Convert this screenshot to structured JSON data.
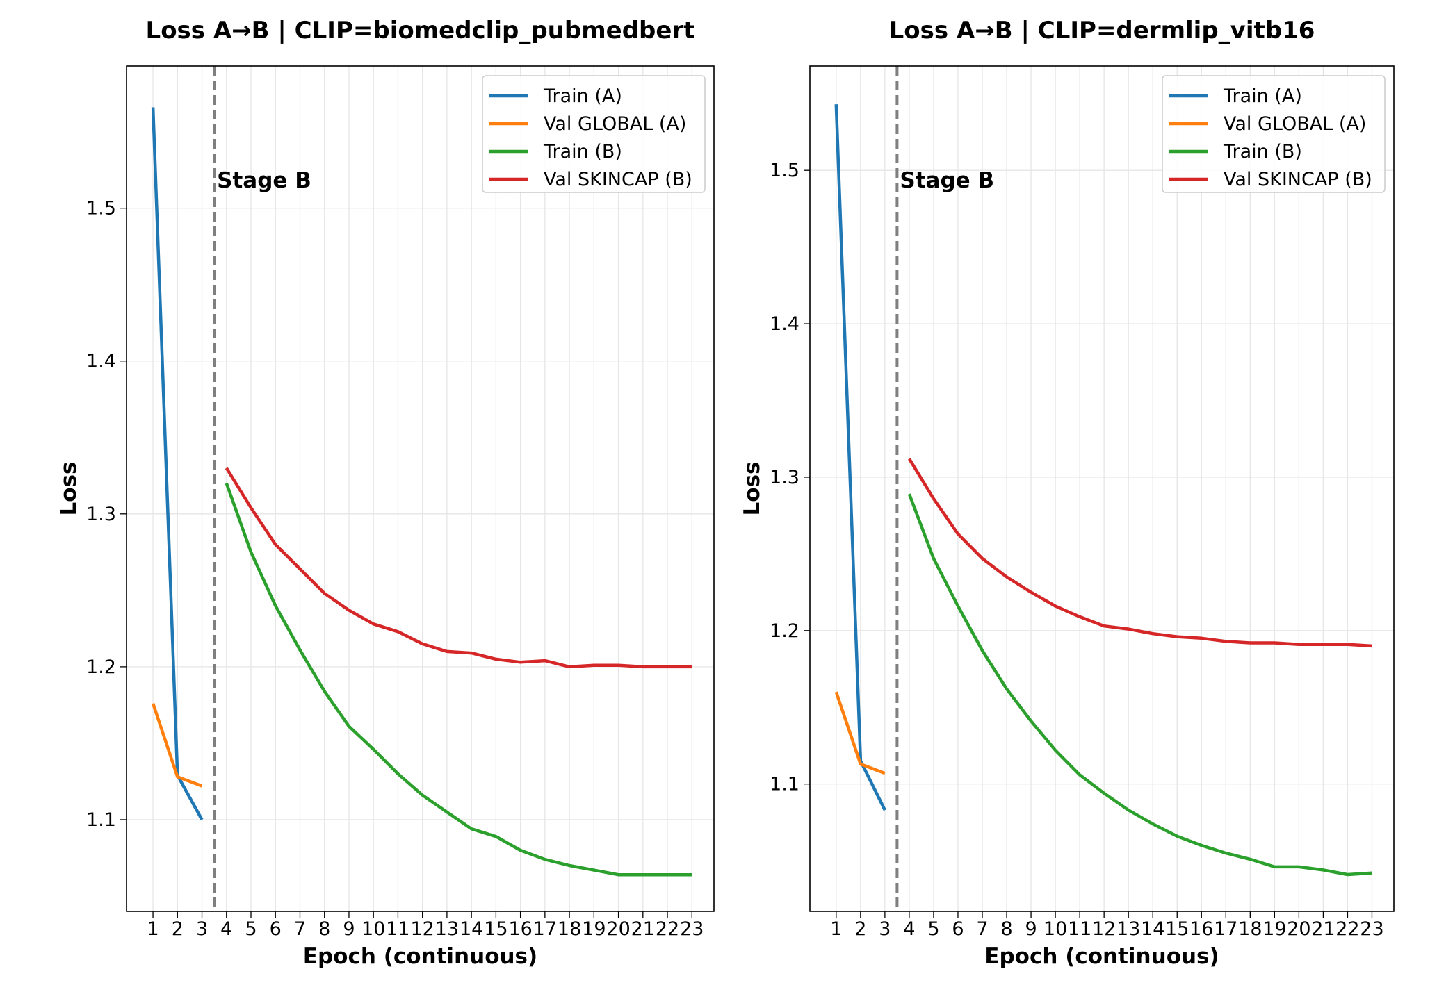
{
  "chart_data": [
    {
      "type": "line",
      "title": "Loss A→B | CLIP=biomedclip_pubmedbert",
      "xlabel": "Epoch (continuous)",
      "ylabel": "Loss",
      "xlim": [
        -0.08,
        23.9
      ],
      "ylim": [
        1.04,
        1.593
      ],
      "x_ticks": [
        1,
        2,
        3,
        4,
        5,
        6,
        7,
        8,
        9,
        10,
        11,
        12,
        13,
        14,
        15,
        16,
        17,
        18,
        19,
        20,
        21,
        22,
        23
      ],
      "y_ticks": [
        1.1,
        1.2,
        1.3,
        1.4,
        1.5
      ],
      "grid": true,
      "legend_position": "top-right",
      "stage_boundary": {
        "x": 3.5,
        "label": "Stage B"
      },
      "series": [
        {
          "name": "Train (A)",
          "color": "#1f77b4",
          "x": [
            1,
            2,
            3
          ],
          "values": [
            1.566,
            1.129,
            1.1
          ]
        },
        {
          "name": "Val GLOBAL (A)",
          "color": "#ff7f0e",
          "x": [
            1,
            2,
            3
          ],
          "values": [
            1.176,
            1.128,
            1.122
          ]
        },
        {
          "name": "Train (B)",
          "color": "#2ca02c",
          "x": [
            4,
            5,
            6,
            7,
            8,
            9,
            10,
            11,
            12,
            13,
            14,
            15,
            16,
            17,
            18,
            19,
            20,
            21,
            22,
            23
          ],
          "values": [
            1.32,
            1.275,
            1.24,
            1.211,
            1.184,
            1.161,
            1.146,
            1.13,
            1.116,
            1.105,
            1.094,
            1.089,
            1.08,
            1.074,
            1.07,
            1.067,
            1.064,
            1.064,
            1.064,
            1.064
          ]
        },
        {
          "name": "Val SKINCAP (B)",
          "color": "#d62728",
          "x": [
            4,
            5,
            6,
            7,
            8,
            9,
            10,
            11,
            12,
            13,
            14,
            15,
            16,
            17,
            18,
            19,
            20,
            21,
            22,
            23
          ],
          "values": [
            1.33,
            1.304,
            1.28,
            1.264,
            1.248,
            1.237,
            1.228,
            1.223,
            1.215,
            1.21,
            1.209,
            1.205,
            1.203,
            1.204,
            1.2,
            1.201,
            1.201,
            1.2,
            1.2,
            1.2
          ]
        }
      ]
    },
    {
      "type": "line",
      "title": "Loss A→B | CLIP=dermlip_vitb16",
      "xlabel": "Epoch (continuous)",
      "ylabel": "Loss",
      "xlim": [
        -0.08,
        23.9
      ],
      "ylim": [
        1.017,
        1.568
      ],
      "x_ticks": [
        1,
        2,
        3,
        4,
        5,
        6,
        7,
        8,
        9,
        10,
        11,
        12,
        13,
        14,
        15,
        16,
        17,
        18,
        19,
        20,
        21,
        22,
        23
      ],
      "y_ticks": [
        1.1,
        1.2,
        1.3,
        1.4,
        1.5
      ],
      "grid": true,
      "legend_position": "top-right",
      "stage_boundary": {
        "x": 3.5,
        "label": "Stage B"
      },
      "series": [
        {
          "name": "Train (A)",
          "color": "#1f77b4",
          "x": [
            1,
            2,
            3
          ],
          "values": [
            1.543,
            1.115,
            1.083
          ]
        },
        {
          "name": "Val GLOBAL (A)",
          "color": "#ff7f0e",
          "x": [
            1,
            2,
            3
          ],
          "values": [
            1.16,
            1.113,
            1.107
          ]
        },
        {
          "name": "Train (B)",
          "color": "#2ca02c",
          "x": [
            4,
            5,
            6,
            7,
            8,
            9,
            10,
            11,
            12,
            13,
            14,
            15,
            16,
            17,
            18,
            19,
            20,
            21,
            22,
            23
          ],
          "values": [
            1.289,
            1.247,
            1.216,
            1.187,
            1.162,
            1.141,
            1.122,
            1.106,
            1.094,
            1.083,
            1.074,
            1.066,
            1.06,
            1.055,
            1.051,
            1.046,
            1.046,
            1.044,
            1.041,
            1.042
          ]
        },
        {
          "name": "Val SKINCAP (B)",
          "color": "#d62728",
          "x": [
            4,
            5,
            6,
            7,
            8,
            9,
            10,
            11,
            12,
            13,
            14,
            15,
            16,
            17,
            18,
            19,
            20,
            21,
            22,
            23
          ],
          "values": [
            1.312,
            1.286,
            1.263,
            1.247,
            1.235,
            1.225,
            1.216,
            1.209,
            1.203,
            1.201,
            1.198,
            1.196,
            1.195,
            1.193,
            1.192,
            1.192,
            1.191,
            1.191,
            1.191,
            1.19
          ]
        }
      ]
    }
  ]
}
